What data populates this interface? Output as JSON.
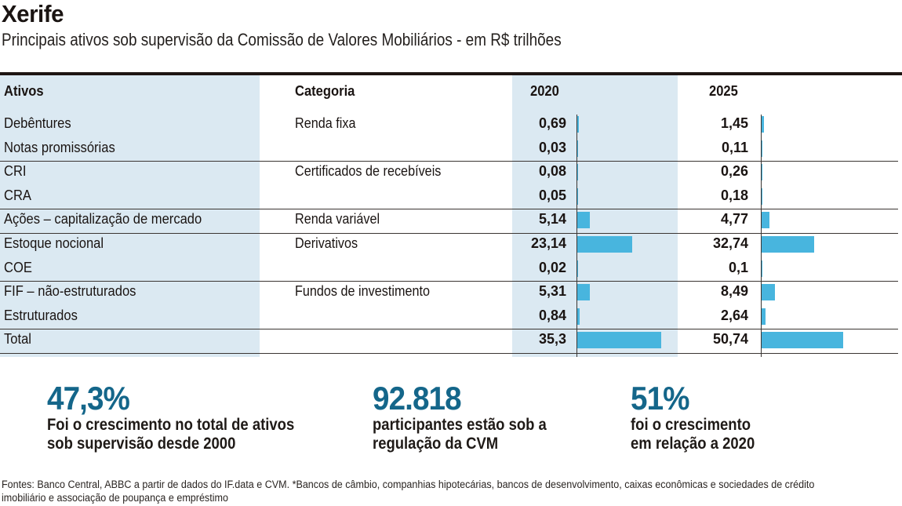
{
  "header": {
    "title": "Xerife",
    "subtitle": "Principais ativos sob supervisão da Comissão de Valores Mobiliários - em R$ trilhões"
  },
  "columns": {
    "asset": "Ativos",
    "category": "Categoria",
    "y2020": "2020",
    "y2025": "2025"
  },
  "chart_data": {
    "type": "table",
    "title": "Xerife",
    "subtitle": "Principais ativos sob supervisão da Comissão de Valores Mobiliários - em R$ trilhões",
    "series": [
      {
        "name": "2020",
        "values": [
          0.69,
          0.03,
          0.08,
          0.05,
          5.14,
          23.14,
          0.02,
          5.31,
          0.84,
          35.3
        ]
      },
      {
        "name": "2025",
        "values": [
          1.45,
          0.11,
          0.26,
          0.18,
          4.77,
          32.74,
          0.1,
          8.49,
          2.64,
          50.74
        ]
      }
    ],
    "rows": [
      {
        "asset": "Debêntures",
        "category": "Renda fixa",
        "v2020": "0,69",
        "v2025": "1,45",
        "n2020": 0.69,
        "n2025": 1.45
      },
      {
        "asset": "Notas promissórias",
        "category": "",
        "v2020": "0,03",
        "v2025": "0,11",
        "n2020": 0.03,
        "n2025": 0.11
      },
      {
        "asset": "CRI",
        "category": "Certificados de recebíveis",
        "v2020": "0,08",
        "v2025": "0,26",
        "n2020": 0.08,
        "n2025": 0.26
      },
      {
        "asset": "CRA",
        "category": "",
        "v2020": "0,05",
        "v2025": "0,18",
        "n2020": 0.05,
        "n2025": 0.18
      },
      {
        "asset": "Ações – capitalização de mercado",
        "category": "Renda variável",
        "v2020": "5,14",
        "v2025": "4,77",
        "n2020": 5.14,
        "n2025": 4.77
      },
      {
        "asset": "Estoque nocional",
        "category": "Derivativos",
        "v2020": "23,14",
        "v2025": "32,74",
        "n2020": 23.14,
        "n2025": 32.74
      },
      {
        "asset": "COE",
        "category": "",
        "v2020": "0,02",
        "v2025": "0,1",
        "n2020": 0.02,
        "n2025": 0.1
      },
      {
        "asset": "FIF – não-estruturados",
        "category": "Fundos de investimento",
        "v2020": "5,31",
        "v2025": "8,49",
        "n2020": 5.31,
        "n2025": 8.49
      },
      {
        "asset": "Estruturados",
        "category": "",
        "v2020": "0,84",
        "v2025": "2,64",
        "n2020": 0.84,
        "n2025": 2.64
      },
      {
        "asset": "Total",
        "category": "",
        "v2020": "35,3",
        "v2025": "50,74",
        "n2020": 35.3,
        "n2025": 50.74
      }
    ],
    "group_separators_after": [
      1,
      3,
      4,
      6,
      8,
      9
    ],
    "bar_color": "#48b5de"
  },
  "stats": [
    {
      "value": "47,3%",
      "line1": "Foi o crescimento no total de ativos",
      "line2": "sob supervisão desde 2000"
    },
    {
      "value": "92.818",
      "line1": "participantes estão sob a",
      "line2": "regulação da CVM"
    },
    {
      "value": "51%",
      "line1": "foi o crescimento",
      "line2": "em relação a 2020"
    }
  ],
  "footer": {
    "line1": "Fontes: Banco Central, ABBC a partir de dados do IF.data e CVM. *Bancos de câmbio, companhias hipotecárias, bancos de desenvolvimento, caixas econômicas e sociedades de crédito",
    "line2": "imobiliário e associação de poupança e empréstimo"
  },
  "colors": {
    "accent": "#14668a",
    "shade": "#dbe9f2",
    "bar": "#48b5de"
  }
}
